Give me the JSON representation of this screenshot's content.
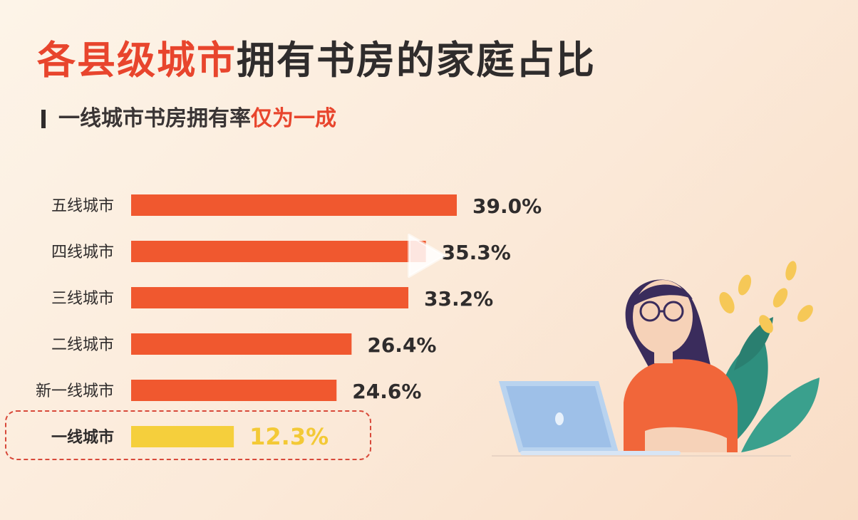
{
  "title": {
    "highlight": "各县级城市",
    "rest": "拥有书房的家庭占比"
  },
  "subtitle": {
    "rest": "一线城市书房拥有率",
    "highlight": "仅为一成"
  },
  "chart_data": {
    "type": "bar",
    "orientation": "horizontal",
    "categories": [
      "五线城市",
      "四线城市",
      "三线城市",
      "二线城市",
      "新一线城市",
      "一线城市"
    ],
    "values": [
      39.0,
      35.3,
      33.2,
      26.4,
      24.6,
      12.3
    ],
    "value_labels": [
      "39.0%",
      "35.3%",
      "33.2%",
      "26.4%",
      "24.6%",
      "12.3%"
    ],
    "highlighted_category": "一线城市",
    "colors": {
      "bar": "#f0582f",
      "highlight_bar": "#f5cf3c",
      "highlight_label": "#f3c936",
      "label": "#2f2c2c",
      "accent": "#e8452d"
    },
    "grid": false,
    "legend": "none"
  },
  "icons": {
    "play": "play-icon",
    "illustration": "woman-with-laptop-illustration"
  }
}
